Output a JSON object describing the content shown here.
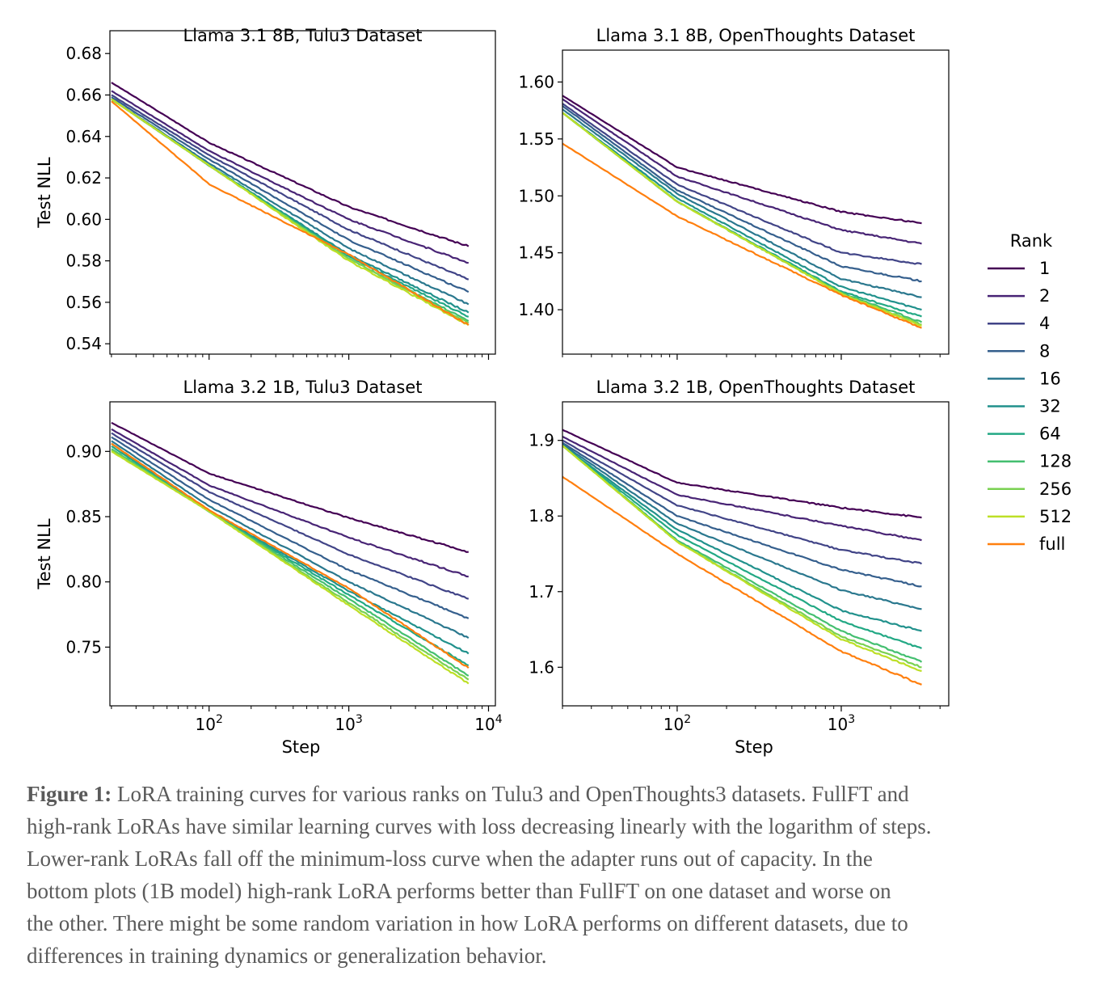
{
  "chart_data": {
    "type": "line",
    "xscale": "log",
    "legend": {
      "title": "Rank",
      "placement": "right",
      "labels": [
        "1",
        "2",
        "4",
        "8",
        "16",
        "32",
        "64",
        "128",
        "256",
        "512",
        "full"
      ]
    },
    "colors": [
      "#440154",
      "#482475",
      "#414487",
      "#355f8d",
      "#2a788e",
      "#21918c",
      "#22a884",
      "#44bf70",
      "#7ad151",
      "#bddf26",
      "#ff7f0e"
    ],
    "panels": [
      {
        "title": "Llama 3.1 8B, Tulu3 Dataset",
        "xlabel": "",
        "ylabel": "Test NLL",
        "xlim": [
          19.5,
          11200
        ],
        "ylim": [
          0.535,
          0.691
        ],
        "xticks": [
          100,
          1000,
          10000
        ],
        "show_xtick_labels": false,
        "yticks": [
          0.54,
          0.56,
          0.58,
          0.6,
          0.62,
          0.64,
          0.66,
          0.68
        ],
        "x": [
          20,
          100,
          1000,
          7200
        ],
        "series": [
          {
            "name": "1",
            "values": [
              0.666,
              0.637,
              0.606,
              0.587
            ]
          },
          {
            "name": "2",
            "values": [
              0.662,
              0.633,
              0.6,
              0.579
            ]
          },
          {
            "name": "4",
            "values": [
              0.66,
              0.631,
              0.595,
              0.571
            ]
          },
          {
            "name": "8",
            "values": [
              0.659,
              0.629,
              0.59,
              0.565
            ]
          },
          {
            "name": "16",
            "values": [
              0.658,
              0.627,
              0.586,
              0.559
            ]
          },
          {
            "name": "32",
            "values": [
              0.658,
              0.626,
              0.583,
              0.555
            ]
          },
          {
            "name": "64",
            "values": [
              0.658,
              0.626,
              0.582,
              0.553
            ]
          },
          {
            "name": "128",
            "values": [
              0.658,
              0.626,
              0.581,
              0.551
            ]
          },
          {
            "name": "256",
            "values": [
              0.658,
              0.626,
              0.581,
              0.55
            ]
          },
          {
            "name": "512",
            "values": [
              0.658,
              0.626,
              0.58,
              0.549
            ]
          },
          {
            "name": "full",
            "values": [
              0.657,
              0.617,
              0.583,
              0.549
            ]
          }
        ]
      },
      {
        "title": "Llama 3.1 8B, OpenThoughts Dataset",
        "xlabel": "",
        "ylabel": "",
        "xlim": [
          20,
          4520
        ],
        "ylim": [
          1.361,
          1.628
        ],
        "xticks": [
          100,
          1000
        ],
        "show_xtick_labels": false,
        "yticks": [
          1.4,
          1.45,
          1.5,
          1.55,
          1.6
        ],
        "x": [
          20,
          100,
          1000,
          3090
        ],
        "series": [
          {
            "name": "1",
            "values": [
              1.588,
              1.525,
              1.486,
              1.476
            ]
          },
          {
            "name": "2",
            "values": [
              1.585,
              1.517,
              1.47,
              1.458
            ]
          },
          {
            "name": "4",
            "values": [
              1.581,
              1.51,
              1.45,
              1.44
            ]
          },
          {
            "name": "8",
            "values": [
              1.579,
              1.505,
              1.438,
              1.425
            ]
          },
          {
            "name": "16",
            "values": [
              1.576,
              1.502,
              1.427,
              1.411
            ]
          },
          {
            "name": "32",
            "values": [
              1.573,
              1.498,
              1.42,
              1.4
            ]
          },
          {
            "name": "64",
            "values": [
              1.573,
              1.495,
              1.416,
              1.394
            ]
          },
          {
            "name": "128",
            "values": [
              1.573,
              1.495,
              1.415,
              1.389
            ]
          },
          {
            "name": "256",
            "values": [
              1.573,
              1.495,
              1.414,
              1.387
            ]
          },
          {
            "name": "512",
            "values": [
              1.573,
              1.495,
              1.414,
              1.386
            ]
          },
          {
            "name": "full",
            "values": [
              1.546,
              1.482,
              1.413,
              1.384
            ]
          }
        ]
      },
      {
        "title": "Llama 3.2 1B, Tulu3 Dataset",
        "xlabel": "Step",
        "ylabel": "Test NLL",
        "xlim": [
          19.5,
          11200
        ],
        "ylim": [
          0.705,
          0.938
        ],
        "xticks": [
          100,
          1000,
          10000
        ],
        "show_xtick_labels": true,
        "yticks": [
          0.75,
          0.8,
          0.85,
          0.9
        ],
        "x": [
          20,
          100,
          1000,
          7200
        ],
        "series": [
          {
            "name": "1",
            "values": [
              0.922,
              0.883,
              0.849,
              0.823
            ]
          },
          {
            "name": "2",
            "values": [
              0.917,
              0.874,
              0.834,
              0.804
            ]
          },
          {
            "name": "4",
            "values": [
              0.914,
              0.869,
              0.821,
              0.787
            ]
          },
          {
            "name": "8",
            "values": [
              0.911,
              0.863,
              0.809,
              0.772
            ]
          },
          {
            "name": "16",
            "values": [
              0.908,
              0.858,
              0.8,
              0.757
            ]
          },
          {
            "name": "32",
            "values": [
              0.906,
              0.854,
              0.793,
              0.745
            ]
          },
          {
            "name": "64",
            "values": [
              0.904,
              0.854,
              0.79,
              0.736
            ]
          },
          {
            "name": "128",
            "values": [
              0.902,
              0.854,
              0.787,
              0.728
            ]
          },
          {
            "name": "256",
            "values": [
              0.901,
              0.854,
              0.784,
              0.725
            ]
          },
          {
            "name": "512",
            "values": [
              0.9,
              0.854,
              0.782,
              0.722
            ]
          },
          {
            "name": "full",
            "values": [
              0.906,
              0.855,
              0.795,
              0.734
            ]
          }
        ]
      },
      {
        "title": "Llama 3.2 1B, OpenThoughts Dataset",
        "xlabel": "Step",
        "ylabel": "",
        "xlim": [
          20,
          4520
        ],
        "ylim": [
          1.549,
          1.951
        ],
        "xticks": [
          100,
          1000
        ],
        "show_xtick_labels": true,
        "yticks": [
          1.6,
          1.7,
          1.8,
          1.9
        ],
        "x": [
          20,
          100,
          1000,
          3090
        ],
        "series": [
          {
            "name": "1",
            "values": [
              1.914,
              1.844,
              1.811,
              1.798
            ]
          },
          {
            "name": "2",
            "values": [
              1.905,
              1.828,
              1.787,
              1.768
            ]
          },
          {
            "name": "4",
            "values": [
              1.9,
              1.814,
              1.755,
              1.737
            ]
          },
          {
            "name": "8",
            "values": [
              1.897,
              1.8,
              1.729,
              1.707
            ]
          },
          {
            "name": "16",
            "values": [
              1.895,
              1.79,
              1.702,
              1.677
            ]
          },
          {
            "name": "32",
            "values": [
              1.893,
              1.782,
              1.675,
              1.648
            ]
          },
          {
            "name": "64",
            "values": [
              1.893,
              1.775,
              1.661,
              1.625
            ]
          },
          {
            "name": "128",
            "values": [
              1.893,
              1.768,
              1.648,
              1.607
            ]
          },
          {
            "name": "256",
            "values": [
              1.893,
              1.766,
              1.641,
              1.6
            ]
          },
          {
            "name": "512",
            "values": [
              1.893,
              1.766,
              1.637,
              1.595
            ]
          },
          {
            "name": "full",
            "values": [
              1.852,
              1.75,
              1.621,
              1.577
            ]
          }
        ]
      }
    ]
  },
  "caption": {
    "label": "Figure 1:",
    "lines": [
      " LoRA training curves for various ranks on Tulu3 and OpenThoughts3 datasets. FullFT and",
      "high-rank LoRAs have similar learning curves with loss decreasing linearly with the logarithm of steps.",
      "Lower-rank LoRAs fall off the minimum-loss curve when the adapter runs out of capacity. In the",
      "bottom plots (1B model) high-rank LoRA performs better than FullFT on one dataset and worse on",
      "the other. There might be some random variation in how LoRA performs on different datasets, due to",
      "differences in training dynamics or generalization behavior."
    ]
  }
}
